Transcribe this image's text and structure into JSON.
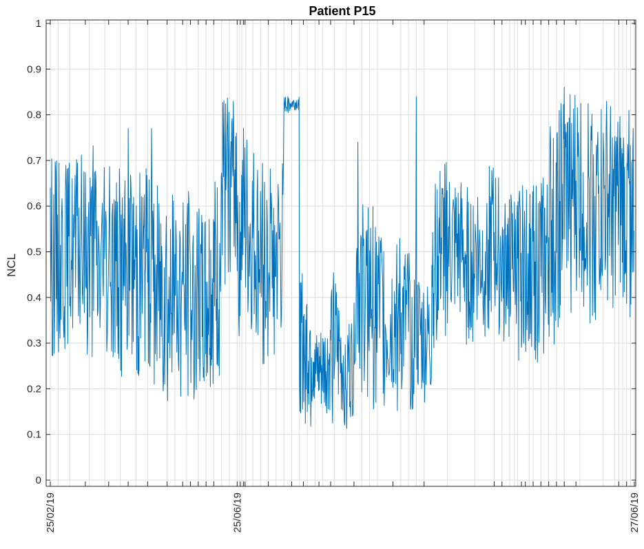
{
  "chart_data": {
    "type": "line",
    "title": "Patient P15",
    "xlabel": "",
    "ylabel": "NCL",
    "x_tick_labels": [
      "25/02/19",
      "25/06/19",
      "27/06/19"
    ],
    "y_tick_labels": [
      "0",
      "0.1",
      "0.2",
      "0.3",
      "0.4",
      "0.5",
      "0.6",
      "0.7",
      "0.8",
      "0.9",
      "1"
    ],
    "ylim": [
      0,
      1
    ],
    "grid": true,
    "line_color": "#0072BD",
    "series": [
      {
        "name": "",
        "segments": [
          {
            "x_start": 0,
            "x_end": 6,
            "low": [
              0.26,
              0.3,
              0.24
            ],
            "high": [
              0.72,
              0.7,
              0.74
            ]
          },
          {
            "x_start": 6,
            "x_end": 9,
            "low": [
              0.23,
              0.25
            ],
            "high": [
              0.68,
              0.7
            ]
          },
          {
            "x_start": 9,
            "x_end": 11,
            "low": [
              0.22,
              0.26
            ],
            "high": [
              0.67,
              0.68
            ]
          },
          {
            "x_start": 11,
            "x_end": 13,
            "low": [
              0.2,
              0.24
            ],
            "high": [
              0.72,
              0.68
            ]
          },
          {
            "x_start": 13,
            "x_end": 15,
            "low": [
              0.16,
              0.2
            ],
            "high": [
              0.65,
              0.7
            ]
          },
          {
            "x_start": 15,
            "x_end": 18,
            "low": [
              0.14,
              0.17,
              0.16
            ],
            "high": [
              0.6,
              0.66,
              0.63
            ]
          },
          {
            "x_start": 18,
            "x_end": 20,
            "low": [
              0.16,
              0.17
            ],
            "high": [
              0.62,
              0.6
            ]
          },
          {
            "x_start": 20,
            "x_end": 22,
            "low": [
              0.16,
              0.17
            ],
            "high": [
              0.62,
              0.68
            ]
          },
          {
            "x_start": 22,
            "x_end": 24,
            "low": [
              0.39,
              0.47
            ],
            "high": [
              0.84,
              0.85
            ]
          },
          {
            "x_start": 24,
            "x_end": 27,
            "low": [
              0.3,
              0.28,
              0.26
            ],
            "high": [
              0.82,
              0.75,
              0.7
            ]
          },
          {
            "x_start": 27,
            "x_end": 30,
            "low": [
              0.24,
              0.26,
              0.25
            ],
            "high": [
              0.72,
              0.68,
              0.7
            ]
          },
          {
            "x_start": 30,
            "x_end": 32,
            "low": [
              0.8,
              0.81
            ],
            "high": [
              0.84,
              0.84
            ]
          },
          {
            "x_start": 32,
            "x_end": 34,
            "low": [
              0.12,
              0.11
            ],
            "high": [
              0.46,
              0.45
            ]
          },
          {
            "x_start": 34,
            "x_end": 36,
            "low": [
              0.12,
              0.13
            ],
            "high": [
              0.32,
              0.36
            ]
          },
          {
            "x_start": 36,
            "x_end": 39,
            "low": [
              0.11,
              0.1,
              0.12
            ],
            "high": [
              0.48,
              0.38,
              0.35
            ]
          },
          {
            "x_start": 39,
            "x_end": 43,
            "low": [
              0.22,
              0.17,
              0.14,
              0.13
            ],
            "high": [
              0.64,
              0.62,
              0.6,
              0.55
            ]
          },
          {
            "x_start": 43,
            "x_end": 46,
            "low": [
              0.13,
              0.14,
              0.13
            ],
            "high": [
              0.5,
              0.55,
              0.5
            ]
          },
          {
            "x_start": 46,
            "x_end": 49,
            "low": [
              0.13,
              0.14,
              0.15
            ],
            "high": [
              0.52,
              0.45,
              0.42
            ]
          },
          {
            "x_start": 49,
            "x_end": 51,
            "low": [
              0.28,
              0.3
            ],
            "high": [
              0.66,
              0.7
            ]
          },
          {
            "x_start": 51,
            "x_end": 55,
            "low": [
              0.3,
              0.3,
              0.29,
              0.3
            ],
            "high": [
              0.68,
              0.66,
              0.64,
              0.68
            ]
          },
          {
            "x_start": 55,
            "x_end": 58,
            "low": [
              0.29,
              0.31,
              0.3
            ],
            "high": [
              0.62,
              0.7,
              0.66
            ]
          },
          {
            "x_start": 58,
            "x_end": 60,
            "low": [
              0.3,
              0.31
            ],
            "high": [
              0.64,
              0.62
            ]
          },
          {
            "x_start": 60,
            "x_end": 62,
            "low": [
              0.26,
              0.27
            ],
            "high": [
              0.65,
              0.64
            ]
          },
          {
            "x_start": 62,
            "x_end": 64,
            "low": [
              0.25,
              0.27
            ],
            "high": [
              0.68,
              0.66
            ]
          },
          {
            "x_start": 64,
            "x_end": 66,
            "low": [
              0.26,
              0.35
            ],
            "high": [
              0.78,
              0.85
            ]
          },
          {
            "x_start": 66,
            "x_end": 70,
            "low": [
              0.36,
              0.37,
              0.35,
              0.33
            ],
            "high": [
              0.85,
              0.86,
              0.87,
              0.84
            ]
          },
          {
            "x_start": 70,
            "x_end": 73,
            "low": [
              0.34,
              0.35,
              0.36
            ],
            "high": [
              0.84,
              0.83,
              0.8
            ]
          },
          {
            "x_start": 73,
            "x_end": 75,
            "low": [
              0.35,
              0.36
            ],
            "high": [
              0.8,
              0.82
            ]
          }
        ],
        "spikes": [
          {
            "x": 10,
            "y": 0.77
          },
          {
            "x": 47,
            "y": 0.84
          },
          {
            "x": 30.5,
            "y": 0.84
          },
          {
            "x": 39.5,
            "y": 0.74
          },
          {
            "x": 66,
            "y": 0.86
          },
          {
            "x": 13,
            "y": 0.77
          }
        ]
      }
    ],
    "vertical_event_lines": [
      0,
      1,
      2.5,
      5,
      7,
      9,
      11,
      12.5,
      15,
      16,
      17.5,
      19,
      20,
      21,
      22,
      23,
      24,
      24.3,
      24.6,
      25.1,
      26,
      27,
      28,
      29,
      30,
      31,
      32,
      33,
      34,
      35,
      36.5,
      38,
      40,
      41,
      42,
      45,
      46,
      47,
      48,
      51,
      54.5,
      57,
      58,
      59,
      59.6,
      60,
      61.5,
      62,
      63,
      64,
      65,
      66,
      68,
      71,
      72.5,
      73,
      73.5,
      74,
      74.5,
      75
    ],
    "x_tick_positions": [
      0,
      4.5,
      7.5,
      10,
      12.5,
      15,
      17,
      18,
      19,
      20,
      21,
      24,
      24.4,
      24.8,
      25,
      28,
      31,
      32.5,
      34.5,
      36,
      39,
      44,
      48,
      57,
      58,
      60.5,
      61,
      62,
      63,
      64,
      65,
      66,
      67.5,
      73,
      74,
      75
    ],
    "x_tick_label_positions": [
      0,
      24,
      75
    ],
    "x_domain": [
      0,
      75
    ]
  }
}
